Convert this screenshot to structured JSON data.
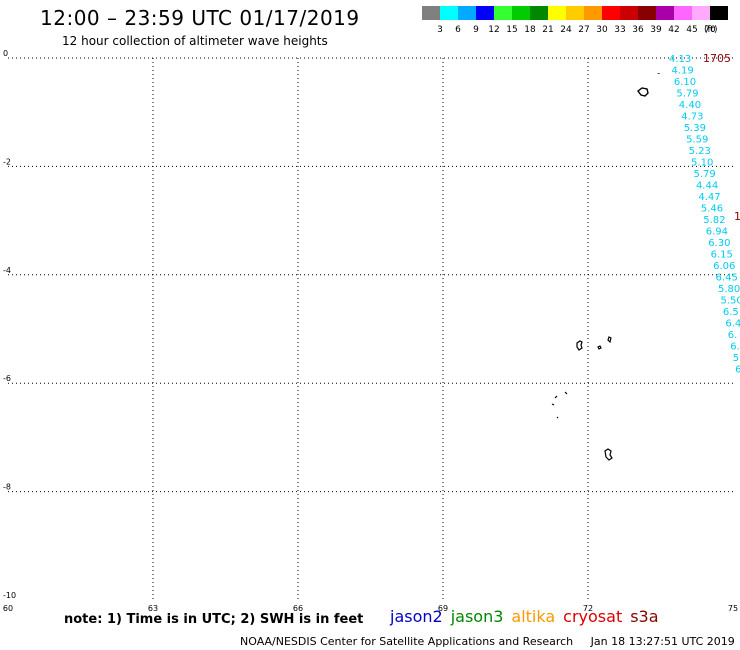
{
  "header": {
    "title": "12:00 – 23:59 UTC 01/17/2019",
    "subtitle": "12 hour collection of altimeter wave heights"
  },
  "color_scale": {
    "unit": "(ft)",
    "bins": [
      {
        "color": "#808080",
        "label": "3"
      },
      {
        "color": "#00ffff",
        "label": "6"
      },
      {
        "color": "#00aaff",
        "label": "9"
      },
      {
        "color": "#0000ff",
        "label": "12"
      },
      {
        "color": "#33ff33",
        "label": "15"
      },
      {
        "color": "#00cc00",
        "label": "18"
      },
      {
        "color": "#008800",
        "label": "21"
      },
      {
        "color": "#ffff00",
        "label": "24"
      },
      {
        "color": "#ffcc00",
        "label": "27"
      },
      {
        "color": "#ff9900",
        "label": "30"
      },
      {
        "color": "#ff0000",
        "label": "33"
      },
      {
        "color": "#cc0000",
        "label": "36"
      },
      {
        "color": "#880000",
        "label": "39"
      },
      {
        "color": "#aa00aa",
        "label": "42"
      },
      {
        "color": "#ff66ff",
        "label": "45"
      },
      {
        "color": "#ffaaff",
        "label": "70"
      },
      {
        "color": "#000000",
        "label": ""
      }
    ]
  },
  "map": {
    "lon_range": [
      60,
      75
    ],
    "lat_range": [
      -10,
      0
    ],
    "lon_ticks": [
      "60",
      "63",
      "66",
      "69",
      "72",
      "75"
    ],
    "lat_ticks": [
      "0",
      "-2",
      "-4",
      "-6",
      "-8",
      "-10"
    ],
    "track_color": "#00ccee",
    "track_labels": [
      "4.13",
      "4.19",
      "6.10",
      "5.79",
      "4.40",
      "4.73",
      "5.39",
      "5.59",
      "5.23",
      "5.10",
      "5.79",
      "4.44",
      "4.47",
      "5.46",
      "5.82",
      "6.94",
      "6.30",
      "6.15",
      "6.06",
      "6.45",
      "5.80",
      "5.50",
      "6.5",
      "6.4",
      "6.",
      "6.",
      "5",
      "6"
    ],
    "time_labels": [
      {
        "text": "1705",
        "color": "#880000"
      },
      {
        "text": "1",
        "color": "#880000"
      }
    ]
  },
  "legend": {
    "note": "note: 1) Time is in UTC; 2) SWH is in feet",
    "satellites": [
      {
        "name": "jason2",
        "color": "#0000cc"
      },
      {
        "name": "jason3",
        "color": "#008800"
      },
      {
        "name": "altika",
        "color": "#ff9900"
      },
      {
        "name": "cryosat",
        "color": "#dd0000"
      },
      {
        "name": "s3a",
        "color": "#880000"
      }
    ]
  },
  "footer": {
    "credit": "NOAA/NESDIS Center for Satellite Applications and Research",
    "timestamp": "Jan 18 13:27:51 UTC 2019"
  }
}
